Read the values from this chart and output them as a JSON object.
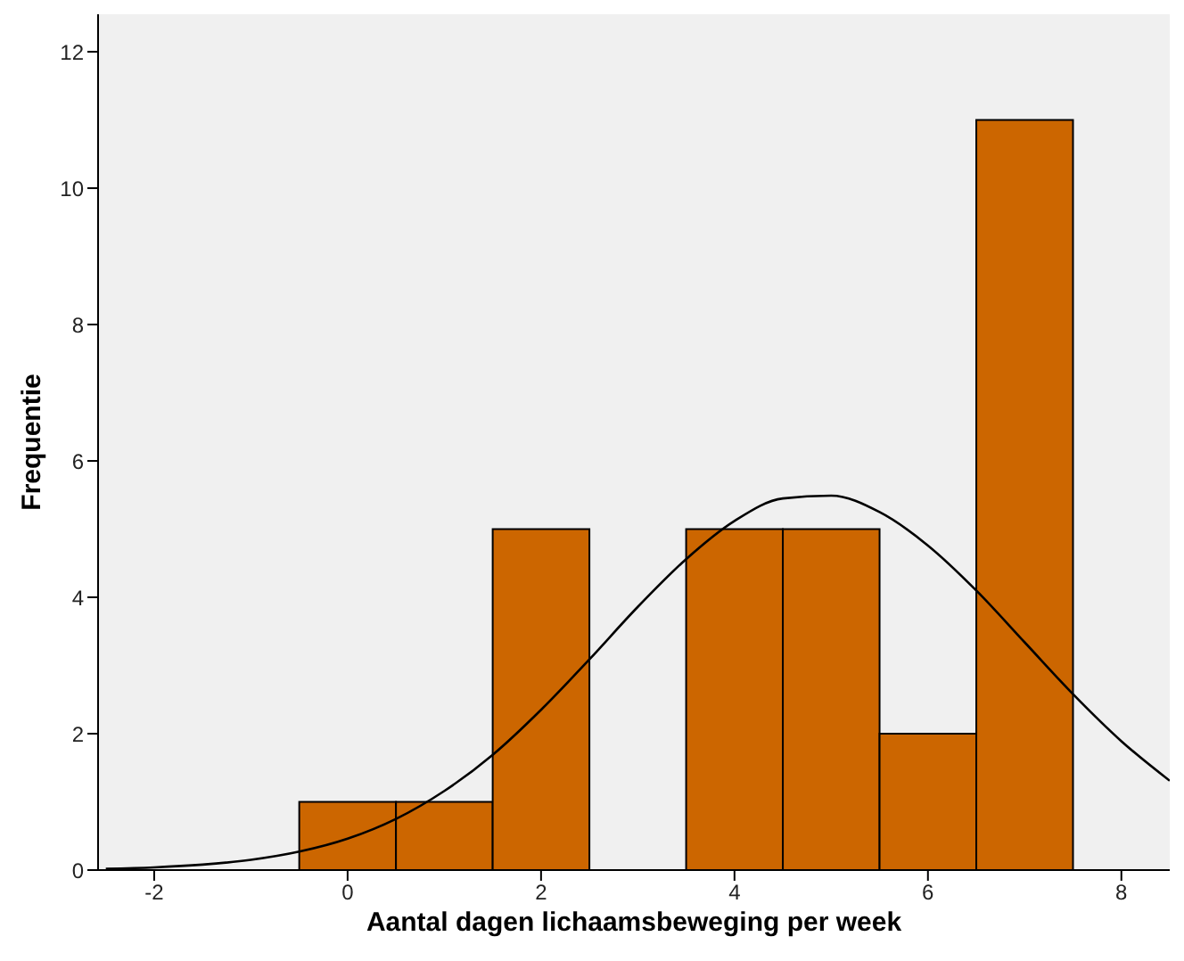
{
  "chart_data": {
    "type": "histogram",
    "xlabel": "Aantal dagen lichaamsbeweging per week",
    "ylabel": "Frequentie",
    "xlim": [
      -2.58,
      8.5
    ],
    "ylim": [
      0,
      12.55
    ],
    "xticks": [
      -2,
      0,
      2,
      4,
      6,
      8
    ],
    "yticks": [
      0,
      2,
      4,
      6,
      8,
      10,
      12
    ],
    "series": [
      {
        "color": "#cc6600",
        "bins": [
          -0.5,
          0.5,
          1.5,
          2.5,
          3.5,
          4.5,
          5.5,
          6.5,
          7.5
        ],
        "values": [
          1,
          1,
          5,
          0,
          5,
          5,
          2,
          11
        ]
      },
      {
        "type": "line",
        "color": "#000000",
        "x": [
          -2.5,
          -2,
          -1.5,
          -1,
          -0.5,
          0,
          0.5,
          1,
          1.5,
          2,
          2.5,
          3,
          3.5,
          4,
          4.5,
          5,
          5.5,
          6,
          6.5,
          7,
          7.5,
          8,
          8.5
        ],
        "values": [
          0.02,
          0.04,
          0.08,
          0.15,
          0.27,
          0.46,
          0.75,
          1.16,
          1.69,
          2.35,
          3.09,
          3.86,
          4.56,
          5.12,
          5.45,
          5.49,
          5.25,
          4.76,
          4.1,
          3.34,
          2.58,
          1.89,
          1.31
        ]
      }
    ]
  }
}
